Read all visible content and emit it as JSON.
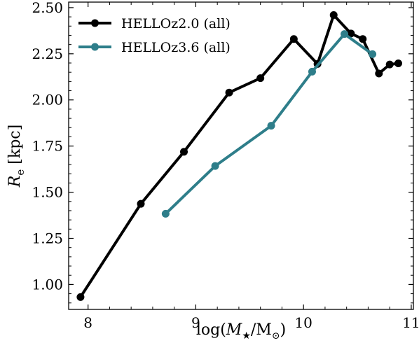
{
  "chart_data": {
    "type": "line",
    "xlabel_parts": {
      "prefix": "log(",
      "var": "M",
      "sub": "★",
      "mid": "/M",
      "sub2": "⊙",
      "suffix": ")"
    },
    "ylabel_parts": {
      "var": "R",
      "sub": "e",
      "suffix": " [kpc]"
    },
    "xlim": [
      7.82,
      11.02
    ],
    "ylim": [
      0.865,
      2.53
    ],
    "x_ticks": [
      8,
      9,
      10,
      11
    ],
    "x_tick_labels": [
      "8",
      "9",
      "10",
      "11"
    ],
    "y_ticks": [
      1.0,
      1.25,
      1.5,
      1.75,
      2.0,
      2.25,
      2.5
    ],
    "y_tick_labels": [
      "1.00",
      "1.25",
      "1.50",
      "1.75",
      "2.00",
      "2.25",
      "2.50"
    ],
    "grid": false,
    "legend_position": "top-left",
    "series": [
      {
        "name": "HELLOz2.0 (all)",
        "color": "#000000",
        "x": [
          7.93,
          8.49,
          8.89,
          9.31,
          9.6,
          9.91,
          10.13,
          10.28,
          10.44,
          10.55,
          10.7,
          10.8,
          10.88
        ],
        "y": [
          0.932,
          1.437,
          1.719,
          2.04,
          2.118,
          2.33,
          2.195,
          2.46,
          2.36,
          2.33,
          2.143,
          2.192,
          2.198
        ]
      },
      {
        "name": "HELLOz3.6 (all)",
        "color": "#2e7e8a",
        "x": [
          8.72,
          9.18,
          9.7,
          10.08,
          10.38,
          10.64
        ],
        "y": [
          1.383,
          1.642,
          1.86,
          2.153,
          2.357,
          2.248
        ]
      }
    ]
  }
}
